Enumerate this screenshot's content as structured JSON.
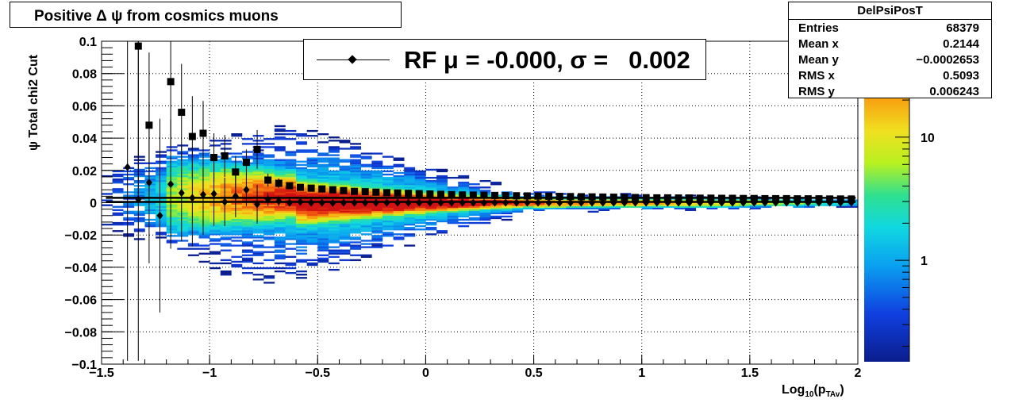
{
  "title": "Positive Δ ψ from cosmics muons",
  "stats": {
    "name": "DelPsiPosT",
    "rows": [
      {
        "label": "Entries",
        "value": "68379"
      },
      {
        "label": "Mean x",
        "value": "0.2144"
      },
      {
        "label": "Mean y",
        "value": "−0.0002653"
      },
      {
        "label": "RMS x",
        "value": "0.5093"
      },
      {
        "label": "RMS y",
        "value": "0.006243"
      }
    ]
  },
  "legend": {
    "text": "RF μ = -0.000, σ =   0.002"
  },
  "chart_data": {
    "type": "heatmap",
    "xlabel_main": "Log",
    "xlabel_sub": "10",
    "xlabel_rest": "(p",
    "xlabel_sub2": "TAv",
    "xlabel_end": ")",
    "ylabel": "ψ  Total chi2 Cut",
    "xlim": [
      -1.5,
      2
    ],
    "ylim": [
      -0.1,
      0.1
    ],
    "x_ticks": [
      -1.5,
      -1,
      -0.5,
      0,
      0.5,
      1,
      1.5,
      2
    ],
    "x_tick_labels": [
      "−1.5",
      "−1",
      "−0.5",
      "0",
      "0.5",
      "1",
      "1.5",
      "2"
    ],
    "y_ticks": [
      -0.1,
      -0.08,
      -0.06,
      -0.04,
      -0.02,
      0,
      0.02,
      0.04,
      0.06,
      0.08,
      0.1
    ],
    "y_tick_labels": [
      "−0.1",
      "−0.08",
      "−0.06",
      "−0.04",
      "−0.02",
      "0",
      "0.02",
      "0.04",
      "0.06",
      "0.08",
      "0.1"
    ],
    "z_log": true,
    "z_range": [
      0.15,
      60
    ],
    "z_ticks": [
      1,
      10
    ],
    "z_tick_labels": [
      "1",
      "10"
    ],
    "grid": true,
    "fit_lines_y": [
      0.003,
      0.0005
    ],
    "sigma_points": {
      "marker": "square",
      "x": [
        -1.33,
        -1.28,
        -1.18,
        -1.13,
        -1.08,
        -1.03,
        -0.98,
        -0.93,
        -0.88,
        -0.83,
        -0.78,
        -0.73,
        -0.68,
        -0.63,
        -0.58,
        -0.53,
        -0.48,
        -0.43,
        -0.38,
        -0.33,
        -0.28,
        -0.23,
        -0.18,
        -0.13,
        -0.08,
        -0.03,
        0.02,
        0.07,
        0.12,
        0.17,
        0.22,
        0.27,
        0.32,
        0.37,
        0.42,
        0.47,
        0.52,
        0.57,
        0.62,
        0.67,
        0.72,
        0.77,
        0.82,
        0.87,
        0.92,
        0.97,
        1.02,
        1.07,
        1.12,
        1.17,
        1.22,
        1.27,
        1.32,
        1.37,
        1.42,
        1.47,
        1.52,
        1.57,
        1.62,
        1.67,
        1.72,
        1.77,
        1.82,
        1.87,
        1.92,
        1.97
      ],
      "y": [
        0.097,
        0.048,
        0.075,
        0.056,
        0.041,
        0.043,
        0.028,
        0.029,
        0.019,
        0.025,
        0.033,
        0.014,
        0.012,
        0.0105,
        0.0095,
        0.009,
        0.0085,
        0.008,
        0.0075,
        0.007,
        0.0068,
        0.0065,
        0.0062,
        0.006,
        0.0058,
        0.0056,
        0.0054,
        0.0052,
        0.005,
        0.0048,
        0.0047,
        0.0046,
        0.0045,
        0.0044,
        0.0043,
        0.0042,
        0.0041,
        0.004,
        0.0039,
        0.0038,
        0.0037,
        0.0036,
        0.0035,
        0.0034,
        0.0033,
        0.0032,
        0.0031,
        0.003,
        0.003,
        0.0029,
        0.0029,
        0.0028,
        0.0028,
        0.0027,
        0.0027,
        0.0026,
        0.0026,
        0.0025,
        0.0025,
        0.0025,
        0.0024,
        0.0024,
        0.0024,
        0.0023,
        0.0023,
        0.0023
      ],
      "yerr": [
        0.097,
        0.045,
        0.04,
        0.03,
        0.025,
        0.02,
        0.015,
        0.013,
        0.01,
        0.008,
        0.012,
        0.004,
        0.003,
        0.002,
        0.0015,
        0.001,
        0.001,
        0.0008,
        0.0007,
        0.0006,
        0.0005,
        0.0005,
        0.0004,
        0.0004,
        0.0004,
        0.0003,
        0.0003,
        0.0003,
        0.0003,
        0.0003,
        0.0003,
        0.0003,
        0.0003,
        0.0003,
        0.0003,
        0.0003,
        0.0003,
        0.0003,
        0.0003,
        0.0003,
        0.0003,
        0.0003,
        0.0003,
        0.0003,
        0.0003,
        0.0003,
        0.0003,
        0.0003,
        0.0003,
        0.0003,
        0.0003,
        0.0003,
        0.0003,
        0.0003,
        0.0003,
        0.0003,
        0.0003,
        0.0003,
        0.0003,
        0.0003,
        0.0003,
        0.0003,
        0.0003,
        0.0003,
        0.0003,
        0.0003
      ]
    },
    "mean_points": {
      "marker": "diamond",
      "x": [
        -1.38,
        -1.33,
        -1.28,
        -1.23,
        -1.18,
        -1.13,
        -1.08,
        -1.03,
        -0.98,
        -0.93,
        -0.88,
        -0.83,
        -0.78,
        -0.73,
        -0.68,
        -0.63,
        -0.58,
        -0.53,
        -0.48,
        -0.43,
        -0.38,
        -0.33,
        -0.28,
        -0.23,
        -0.18,
        -0.13,
        -0.08,
        -0.03,
        0.02,
        0.07,
        0.12,
        0.17,
        0.22,
        0.27,
        0.32,
        0.37,
        0.42,
        0.47,
        0.52,
        0.57,
        0.62,
        0.67,
        0.72,
        0.77,
        0.82,
        0.87,
        0.92,
        0.97,
        1.02,
        1.07,
        1.12,
        1.17,
        1.22,
        1.27,
        1.32,
        1.37,
        1.42,
        1.47,
        1.52,
        1.57,
        1.62,
        1.67,
        1.72,
        1.77,
        1.82,
        1.87,
        1.92,
        1.97
      ],
      "y": [
        0.022,
        0.002,
        0.0125,
        -0.008,
        0.0115,
        0.006,
        0.003,
        0.005,
        0.0055,
        0.0005,
        0.004,
        0.008,
        -0.001,
        0.002,
        0.001,
        0,
        0.0005,
        0,
        0,
        -0.0002,
        0,
        0,
        0,
        0,
        0,
        0,
        0,
        0,
        0,
        0,
        0,
        0,
        0,
        0,
        0,
        0,
        0,
        0,
        0,
        0,
        0,
        0,
        0,
        0,
        0,
        0,
        0,
        0,
        0,
        0,
        0,
        0,
        0,
        0,
        0,
        0,
        0,
        0,
        0,
        0,
        0,
        0,
        0,
        0,
        0,
        0,
        0,
        0
      ],
      "yerr": [
        0.12,
        0.1,
        0.05,
        0.06,
        0.04,
        0.03,
        0.03,
        0.025,
        0.02,
        0.015,
        0.013,
        0.01,
        0.012,
        0.004,
        0.003,
        0.002,
        0.0015,
        0.001,
        0.001,
        0.0008,
        0.0007,
        0.0006,
        0.0005,
        0.0005,
        0.0004,
        0.0004,
        0.0004,
        0.0003,
        0.0003,
        0.0003,
        0.0003,
        0.0003,
        0.0003,
        0.0003,
        0.0003,
        0.0003,
        0.0003,
        0.0003,
        0.0003,
        0.0003,
        0.0003,
        0.0003,
        0.0003,
        0.0003,
        0.0003,
        0.0003,
        0.0003,
        0.0003,
        0.0003,
        0.0003,
        0.0003,
        0.0003,
        0.0003,
        0.0003,
        0.0003,
        0.0003,
        0.0003,
        0.0003,
        0.0003,
        0.0003,
        0.0003,
        0.0003,
        0.0003,
        0.0003,
        0.0003,
        0.0003,
        0.0003,
        0.0003
      ]
    }
  }
}
